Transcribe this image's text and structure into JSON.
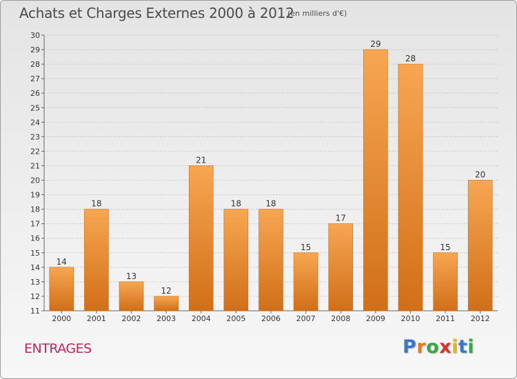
{
  "title": "Achats et Charges Externes 2000 à 2012",
  "subtitle": "(en milliers d'€)",
  "commune": "ENTRAGES",
  "logo": {
    "text": "Proxiti",
    "letter_colors": [
      "#3a78c3",
      "#e87a1c",
      "#3aa54a",
      "#d9322b",
      "#e8b21c",
      "#3a78c3",
      "#3aa54a"
    ]
  },
  "colors": {
    "bar_top": "#f7a652",
    "bar_bottom": "#d16f18",
    "grid": "#c8c8c8"
  },
  "chart_data": {
    "type": "bar",
    "title": "Achats et Charges Externes 2000 à 2012",
    "subtitle": "(en milliers d'€)",
    "categories": [
      "2000",
      "2001",
      "2002",
      "2003",
      "2004",
      "2005",
      "2006",
      "2007",
      "2008",
      "2009",
      "2010",
      "2011",
      "2012"
    ],
    "values": [
      14,
      18,
      13,
      12,
      21,
      18,
      18,
      15,
      17,
      29,
      28,
      15,
      20
    ],
    "ylim": [
      11,
      30
    ],
    "yticks": [
      11,
      12,
      13,
      14,
      15,
      16,
      17,
      18,
      19,
      20,
      21,
      22,
      23,
      24,
      25,
      26,
      27,
      28,
      29,
      30
    ],
    "grid": true,
    "legend": "none"
  }
}
